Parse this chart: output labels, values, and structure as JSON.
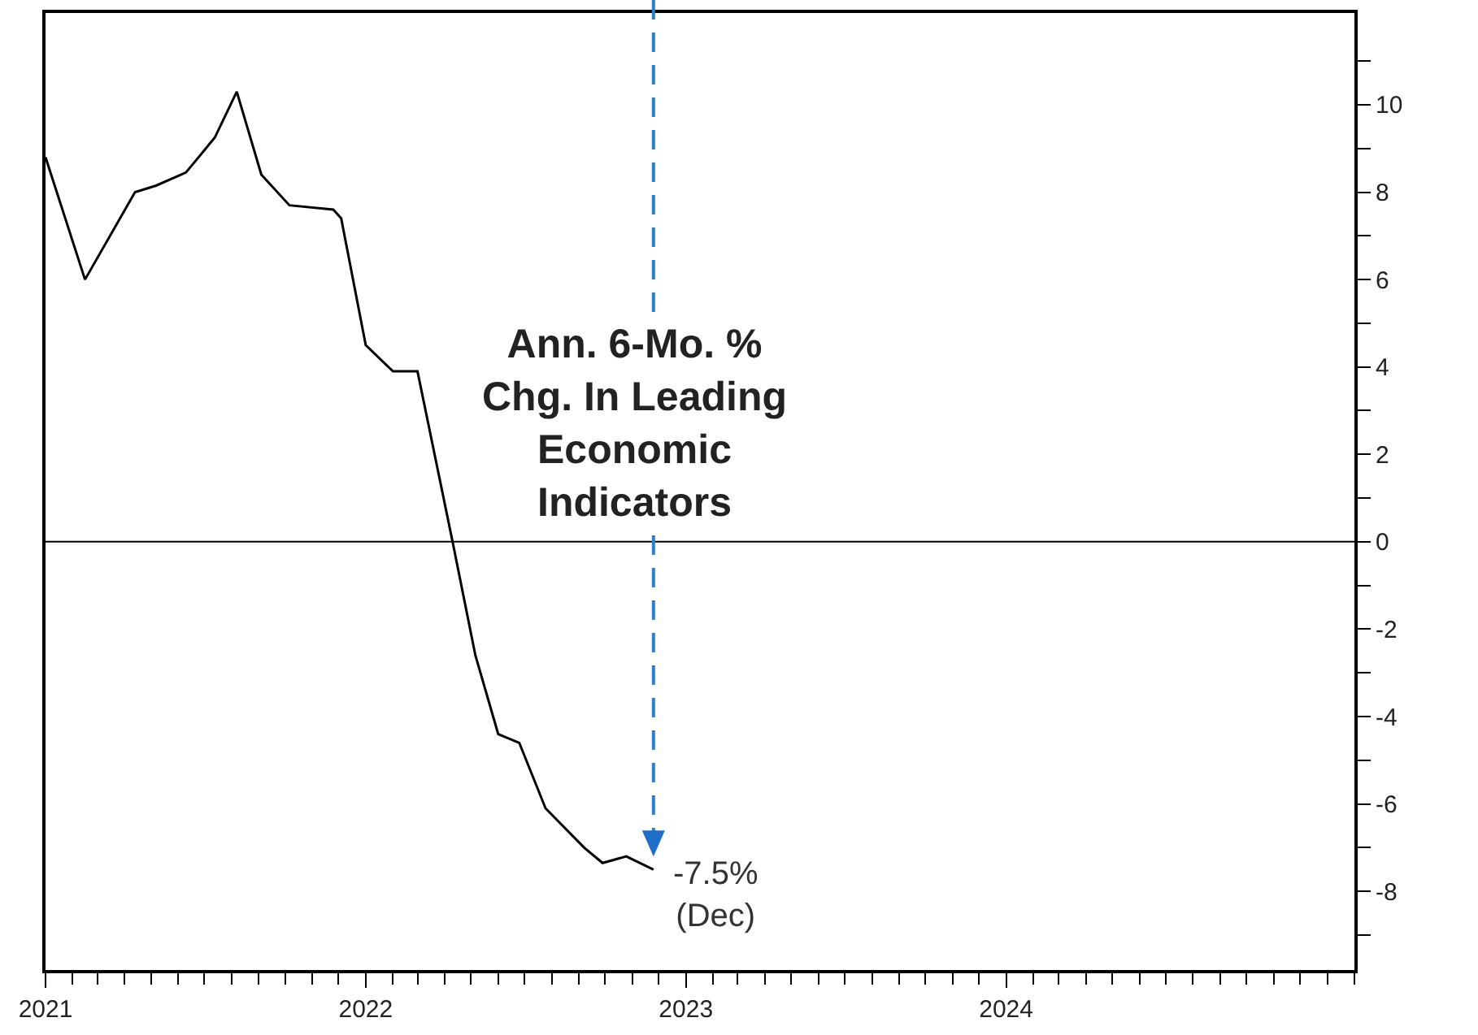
{
  "chart_data": {
    "type": "line",
    "title": "Ann. 6-Mo. %\nChg. In Leading\nEconomic\nIndicators",
    "x": [
      "2021-01-01",
      "2021-02-15",
      "2021-04-13",
      "2021-05-07",
      "2021-06-10",
      "2021-07-13",
      "2021-08-07",
      "2021-09-04",
      "2021-10-06",
      "2021-11-25",
      "2021-12-04",
      "2022-01-01",
      "2022-02-01",
      "2022-03-01",
      "2022-04-10",
      "2022-05-06",
      "2022-06-01",
      "2022-06-25",
      "2022-07-25",
      "2022-09-07",
      "2022-09-28",
      "2022-10-25",
      "2022-11-25"
    ],
    "series": [
      {
        "color": "#000000",
        "values": [
          8.8,
          6.0,
          8.0,
          8.15,
          8.45,
          9.25,
          10.3,
          8.4,
          7.7,
          7.6,
          7.4,
          4.5,
          3.9,
          3.9,
          0,
          -2.6,
          -4.4,
          -4.6,
          -6.1,
          -7.0,
          -7.35,
          -7.2,
          -7.5
        ]
      }
    ],
    "xlim": [
      "2021-01-01",
      "2025-02-01"
    ],
    "xticks": [
      {
        "value": "2021-01-01",
        "label": "2021"
      },
      {
        "value": "2022-01-01",
        "label": "2022"
      },
      {
        "value": "2023-01-01",
        "label": "2023"
      },
      {
        "value": "2024-01-01",
        "label": "2024"
      }
    ],
    "ylim": [
      -9.8,
      12.1
    ],
    "yticks": [
      {
        "value": -9,
        "label": null
      },
      -8,
      {
        "value": -7,
        "label": null
      },
      -6,
      {
        "value": -5,
        "label": null
      },
      -4,
      {
        "value": -3,
        "label": null
      },
      -2,
      {
        "value": -1,
        "label": null
      },
      0,
      {
        "value": 1,
        "label": null
      },
      2,
      {
        "value": 3,
        "label": null
      },
      4,
      {
        "value": 5,
        "label": null
      },
      6,
      {
        "value": 7,
        "label": null
      },
      8,
      {
        "value": 9,
        "label": null
      },
      10,
      {
        "value": 11,
        "label": null
      }
    ],
    "ref_lines": [
      {
        "axis": "y",
        "value": 0,
        "color": "#000000"
      }
    ],
    "annotations": [
      {
        "text": "-7.5%\n(Dec)",
        "x": "2022-11-25",
        "y": -7.5
      }
    ],
    "grid": false,
    "marker": "none",
    "line_style": "solid"
  }
}
